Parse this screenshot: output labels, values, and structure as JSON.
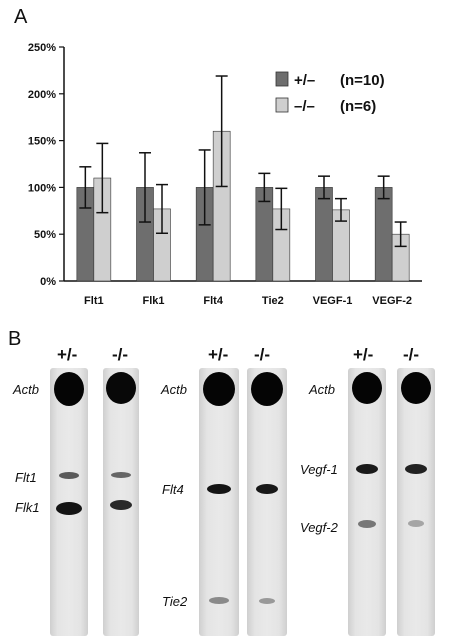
{
  "panel_a": {
    "label": "A"
  },
  "panel_b": {
    "label": "B",
    "gels": [
      {
        "lanes": [
          "+/-",
          "-/-"
        ],
        "bands": [
          "Actb",
          "Flt1",
          "Flk1"
        ]
      },
      {
        "lanes": [
          "+/-",
          "-/-"
        ],
        "bands": [
          "Actb",
          "Flt4",
          "Tie2"
        ]
      },
      {
        "lanes": [
          "+/-",
          "-/-"
        ],
        "bands": [
          "Actb",
          "Vegf-1",
          "Vegf-2"
        ]
      }
    ]
  },
  "colors": {
    "het": "#6e6e6e",
    "ko": "#cfcfcf",
    "axis": "#111111"
  },
  "chart_data": {
    "type": "bar",
    "categories": [
      "Flt1",
      "Flk1",
      "Flt4",
      "Tie2",
      "VEGF-1",
      "VEGF-2"
    ],
    "series": [
      {
        "name": "+/–",
        "n_label": "(n=10)",
        "values": [
          100,
          100,
          100,
          100,
          100,
          100
        ],
        "error": [
          22,
          37,
          40,
          15,
          12,
          12
        ]
      },
      {
        "name": "–/–",
        "n_label": "(n=6)",
        "values": [
          110,
          77,
          160,
          77,
          76,
          50
        ],
        "error": [
          37,
          26,
          59,
          22,
          12,
          13
        ]
      }
    ],
    "ylim": [
      0,
      250
    ],
    "yticks": [
      "0%",
      "50%",
      "100%",
      "150%",
      "200%",
      "250%"
    ],
    "ytick_values": [
      0,
      50,
      100,
      150,
      200,
      250
    ],
    "grid": false,
    "legend_position": "top-right",
    "xlabel": "",
    "ylabel": ""
  }
}
